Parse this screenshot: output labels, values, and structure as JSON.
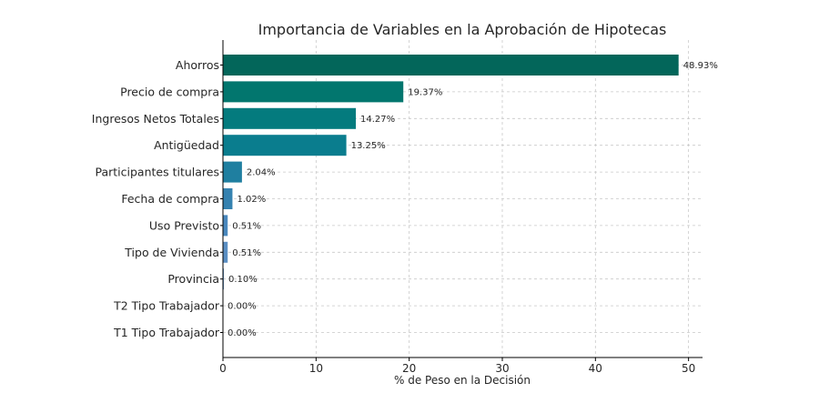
{
  "chart_data": {
    "type": "bar",
    "orientation": "horizontal",
    "title": "Importancia de Variables en la Aprobación de Hipotecas",
    "xlabel": "% de Peso en la Decisión",
    "ylabel": "",
    "categories": [
      "Ahorros",
      "Precio de compra",
      "Ingresos Netos Totales",
      "Antigüedad",
      "Participantes titulares",
      "Fecha de compra",
      "Uso Previsto",
      "Tipo de Vivienda",
      "Provincia",
      "T2 Tipo Trabajador",
      "T1 Tipo Trabajador"
    ],
    "values": [
      48.93,
      19.37,
      14.27,
      13.25,
      2.04,
      1.02,
      0.51,
      0.51,
      0.1,
      0.0,
      0.0
    ],
    "value_labels": [
      "48.93%",
      "19.37%",
      "14.27%",
      "13.25%",
      "2.04%",
      "1.02%",
      "0.51%",
      "0.51%",
      "0.10%",
      "0.00%",
      "0.00%"
    ],
    "xlim": [
      0,
      51.5
    ],
    "xticks": [
      0,
      10,
      20,
      30,
      40,
      50
    ],
    "xtick_labels": [
      "0",
      "10",
      "20",
      "30",
      "40",
      "50"
    ],
    "grid": true,
    "legend": "none",
    "colors": [
      "#03665a",
      "#02766e",
      "#047b7e",
      "#0a7d8e",
      "#1f7fa0",
      "#3582b0",
      "#4a88bd",
      "#5b8fc3",
      "#6a97c8",
      "#78a0cd",
      "#85a8d2"
    ]
  }
}
